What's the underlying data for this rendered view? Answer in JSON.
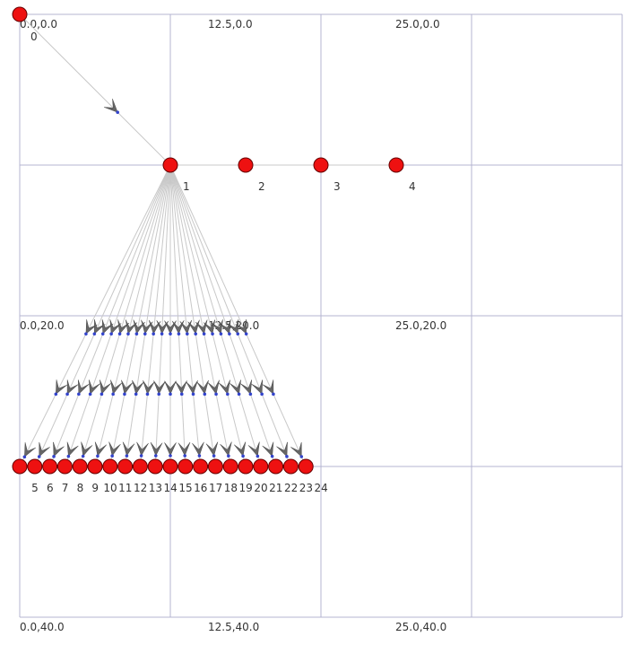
{
  "graph": {
    "grid_labels": [
      {
        "text": "0.0,0.0",
        "col": 0,
        "row": 0
      },
      {
        "text": "12.5,0.0",
        "col": 1,
        "row": 0
      },
      {
        "text": "25.0,0.0",
        "col": 2,
        "row": 0
      },
      {
        "text": "0.0,20.0",
        "col": 0,
        "row": 1
      },
      {
        "text": "12.5,20.0",
        "col": 1,
        "row": 1
      },
      {
        "text": "25.0,20.0",
        "col": 2,
        "row": 1
      },
      {
        "text": "0.0,40.0",
        "col": 0,
        "row": 2
      },
      {
        "text": "12.5,40.0",
        "col": 1,
        "row": 2
      },
      {
        "text": "25.0,40.0",
        "col": 2,
        "row": 2
      }
    ],
    "nodes": [
      {
        "id": "0",
        "x": 0.0,
        "y": 0.0
      },
      {
        "id": "1",
        "x": 12.5,
        "y": 10.0
      },
      {
        "id": "2",
        "x": 18.75,
        "y": 10.0
      },
      {
        "id": "3",
        "x": 25.0,
        "y": 10.0
      },
      {
        "id": "4",
        "x": 31.25,
        "y": 10.0
      },
      {
        "id": "5",
        "x": 0.0,
        "y": 30.0
      },
      {
        "id": "6",
        "x": 1.25,
        "y": 30.0
      },
      {
        "id": "7",
        "x": 2.5,
        "y": 30.0
      },
      {
        "id": "8",
        "x": 3.75,
        "y": 30.0
      },
      {
        "id": "9",
        "x": 5.0,
        "y": 30.0
      },
      {
        "id": "10",
        "x": 6.25,
        "y": 30.0
      },
      {
        "id": "11",
        "x": 7.5,
        "y": 30.0
      },
      {
        "id": "12",
        "x": 8.75,
        "y": 30.0
      },
      {
        "id": "13",
        "x": 10.0,
        "y": 30.0
      },
      {
        "id": "14",
        "x": 11.25,
        "y": 30.0
      },
      {
        "id": "15",
        "x": 12.5,
        "y": 30.0
      },
      {
        "id": "16",
        "x": 13.75,
        "y": 30.0
      },
      {
        "id": "17",
        "x": 15.0,
        "y": 30.0
      },
      {
        "id": "18",
        "x": 16.25,
        "y": 30.0
      },
      {
        "id": "19",
        "x": 17.5,
        "y": 30.0
      },
      {
        "id": "20",
        "x": 18.75,
        "y": 30.0
      },
      {
        "id": "21",
        "x": 20.0,
        "y": 30.0
      },
      {
        "id": "22",
        "x": 21.25,
        "y": 30.0
      },
      {
        "id": "23",
        "x": 22.5,
        "y": 30.0
      },
      {
        "id": "24",
        "x": 23.75,
        "y": 30.0
      }
    ],
    "edges": [
      {
        "from": "0",
        "to": "1"
      },
      {
        "from": "1",
        "to": "2"
      },
      {
        "from": "2",
        "to": "3"
      },
      {
        "from": "3",
        "to": "4"
      },
      {
        "from": "1",
        "to": "5"
      },
      {
        "from": "1",
        "to": "6"
      },
      {
        "from": "1",
        "to": "7"
      },
      {
        "from": "1",
        "to": "8"
      },
      {
        "from": "1",
        "to": "9"
      },
      {
        "from": "1",
        "to": "10"
      },
      {
        "from": "1",
        "to": "11"
      },
      {
        "from": "1",
        "to": "12"
      },
      {
        "from": "1",
        "to": "13"
      },
      {
        "from": "1",
        "to": "14"
      },
      {
        "from": "1",
        "to": "15"
      },
      {
        "from": "1",
        "to": "16"
      },
      {
        "from": "1",
        "to": "17"
      },
      {
        "from": "1",
        "to": "18"
      },
      {
        "from": "1",
        "to": "19"
      },
      {
        "from": "1",
        "to": "20"
      },
      {
        "from": "1",
        "to": "21"
      },
      {
        "from": "1",
        "to": "22"
      },
      {
        "from": "1",
        "to": "23"
      },
      {
        "from": "1",
        "to": "24"
      }
    ],
    "colors": {
      "node_fill": "#ee1111",
      "node_stroke": "#660000",
      "edge": "#c8c8c8",
      "grid": "#b4b4d2",
      "arrow": "#666666",
      "anchor": "#3344cc"
    }
  }
}
